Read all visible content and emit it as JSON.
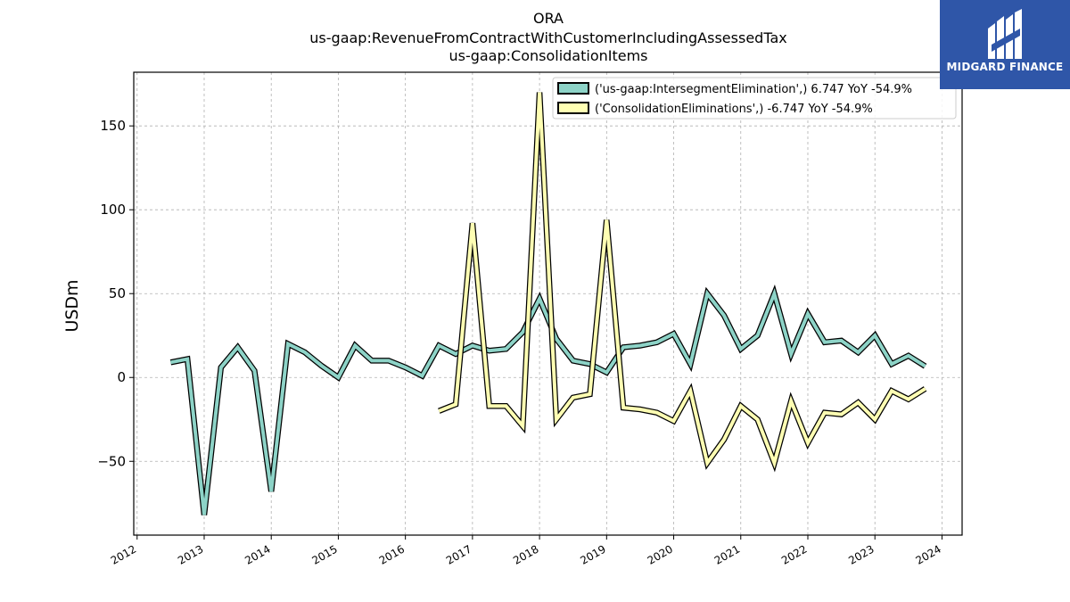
{
  "title": {
    "line1": "ORA",
    "line2": "us-gaap:RevenueFromContractWithCustomerIncludingAssessedTax",
    "line3": "us-gaap:ConsolidationItems"
  },
  "logo": {
    "text": "MIDGARD FINANCE",
    "bg_color": "#2f56a8"
  },
  "chart_data": {
    "type": "line",
    "ylabel": "USDm",
    "xlabel": "",
    "xlim": [
      2011.95,
      2024.3
    ],
    "ylim": [
      -94,
      182
    ],
    "yticks": [
      -50,
      0,
      50,
      100,
      150
    ],
    "ytick_labels": [
      "−50",
      "0",
      "50",
      "100",
      "150"
    ],
    "xticks": [
      2012,
      2013,
      2014,
      2015,
      2016,
      2017,
      2018,
      2019,
      2020,
      2021,
      2022,
      2023,
      2024
    ],
    "xtick_labels": [
      "2012",
      "2013",
      "2014",
      "2015",
      "2016",
      "2017",
      "2018",
      "2019",
      "2020",
      "2021",
      "2022",
      "2023",
      "2024"
    ],
    "grid": true,
    "legend_position": "top-right",
    "series": [
      {
        "name": "('us-gaap:IntersegmentElimination',) 6.747 YoY -54.9%",
        "color": "#8dd3c7",
        "x": [
          2012.5,
          2012.75,
          2013.0,
          2013.25,
          2013.5,
          2013.75,
          2014.0,
          2014.25,
          2014.5,
          2014.75,
          2015.0,
          2015.25,
          2015.5,
          2015.75,
          2016.0,
          2016.25,
          2016.5,
          2016.75,
          2017.0,
          2017.25,
          2017.5,
          2017.75,
          2018.0,
          2018.25,
          2018.5,
          2018.75,
          2019.0,
          2019.25,
          2019.5,
          2019.75,
          2020.0,
          2020.25,
          2020.5,
          2020.75,
          2021.0,
          2021.25,
          2021.5,
          2021.75,
          2022.0,
          2022.25,
          2022.5,
          2022.75,
          2023.0,
          2023.25,
          2023.5,
          2023.75
        ],
        "y": [
          9,
          11,
          -82,
          6,
          18,
          4,
          -68,
          20,
          15,
          7,
          0,
          19,
          10,
          10,
          6,
          1,
          19,
          14,
          19,
          16,
          17,
          27,
          47,
          23,
          10,
          8,
          3,
          18,
          19,
          21,
          26,
          8,
          50,
          37,
          17,
          25,
          50,
          14,
          38,
          21,
          22,
          15,
          25,
          8,
          13,
          6.747
        ]
      },
      {
        "name": "('ConsolidationEliminations',) -6.747 YoY -54.9%",
        "color": "#ffffb3",
        "x": [
          2016.5,
          2016.75,
          2017.0,
          2017.25,
          2017.5,
          2017.75,
          2018.0,
          2018.25,
          2018.5,
          2018.75,
          2019.0,
          2019.25,
          2019.5,
          2019.75,
          2020.0,
          2020.25,
          2020.5,
          2020.75,
          2021.0,
          2021.25,
          2021.5,
          2021.75,
          2022.0,
          2022.25,
          2022.5,
          2022.75,
          2023.0,
          2023.25,
          2023.5,
          2023.75
        ],
        "y": [
          -20,
          -16,
          92,
          -17,
          -17,
          -29,
          170,
          -25,
          -12,
          -10,
          94,
          -18,
          -19,
          -21,
          -26,
          -8,
          -51,
          -37,
          -17,
          -25,
          -51,
          -14,
          -39,
          -21,
          -22,
          -15,
          -25,
          -8,
          -13,
          -6.747
        ]
      }
    ]
  }
}
